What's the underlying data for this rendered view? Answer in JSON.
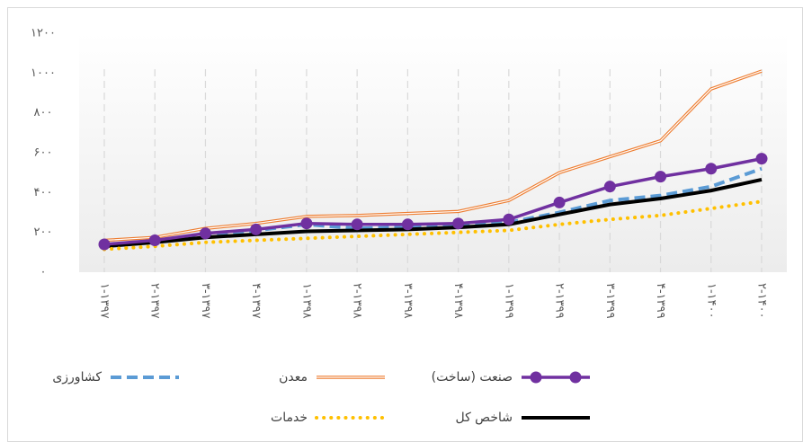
{
  "chart_data": {
    "type": "line",
    "categories": [
      "۱-۱۳۹۷",
      "۲-۱۳۹۷",
      "۳-۱۳۹۷",
      "۴-۱۳۹۷",
      "۱-۱۳۹۸",
      "۲-۱۳۹۸",
      "۳-۱۳۹۸",
      "۴-۱۳۹۸",
      "۱-۱۳۹۹",
      "۲-۱۳۹۹",
      "۳-۱۳۹۹",
      "۴-۱۳۹۹",
      "۱-۱۴۰۰",
      "۲-۱۴۰۰"
    ],
    "series": [
      {
        "name": "صنعت (ساخت)",
        "color": "#7030a0",
        "line_style": "solid",
        "marker": true,
        "values": [
          140,
          160,
          195,
          215,
          245,
          240,
          240,
          245,
          265,
          350,
          430,
          480,
          520,
          570
        ]
      },
      {
        "name": "معدن",
        "color": "#ed7d31",
        "line_style": "double",
        "marker": false,
        "values": [
          160,
          175,
          220,
          245,
          280,
          285,
          295,
          305,
          360,
          500,
          580,
          660,
          920,
          1010
        ]
      },
      {
        "name": "کشاورزی",
        "color": "#5b9bd5",
        "line_style": "dashed",
        "marker": false,
        "values": [
          130,
          155,
          185,
          210,
          240,
          220,
          225,
          230,
          250,
          300,
          360,
          385,
          430,
          520
        ]
      },
      {
        "name": "شاخص کل",
        "color": "#000000",
        "line_style": "solid",
        "marker": false,
        "values": [
          130,
          150,
          175,
          190,
          205,
          210,
          215,
          225,
          240,
          290,
          340,
          370,
          410,
          465
        ]
      },
      {
        "name": "خدمات",
        "color": "#ffc000",
        "line_style": "dotted",
        "marker": false,
        "values": [
          115,
          130,
          150,
          160,
          170,
          180,
          190,
          200,
          210,
          240,
          265,
          285,
          320,
          355
        ]
      }
    ],
    "ylim": [
      0,
      1200
    ],
    "yticks": [
      {
        "value": 0,
        "label": "۰"
      },
      {
        "value": 200,
        "label": "۲۰۰"
      },
      {
        "value": 400,
        "label": "۴۰۰"
      },
      {
        "value": 600,
        "label": "۶۰۰"
      },
      {
        "value": 800,
        "label": "۸۰۰"
      },
      {
        "value": 1000,
        "label": "۱۰۰۰"
      },
      {
        "value": 1200,
        "label": "۱۲۰۰"
      }
    ],
    "grid": true
  }
}
